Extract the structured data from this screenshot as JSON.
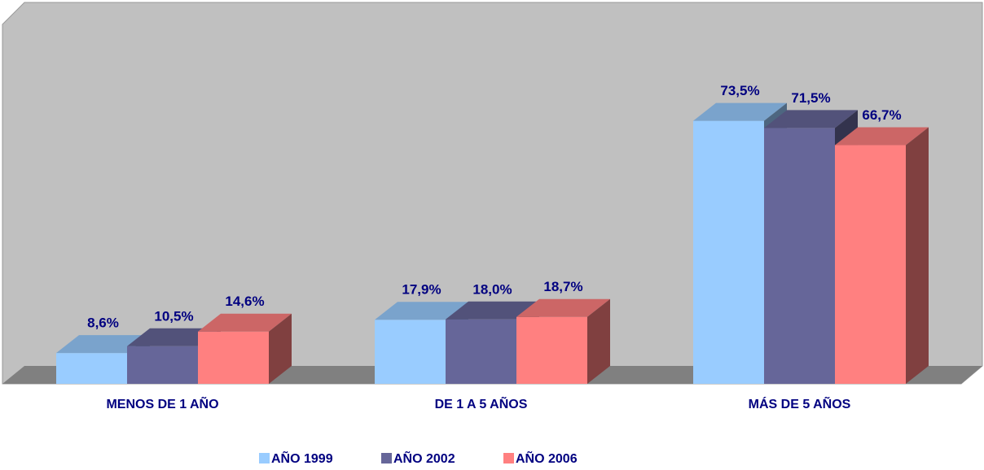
{
  "chart_data": {
    "type": "bar3d",
    "categories": [
      "MENOS DE 1 AÑO",
      "DE 1 A 5 AÑOS",
      "MÁS DE 5 AÑOS"
    ],
    "series": [
      {
        "name": "AÑO 1999",
        "color": "#99ccff",
        "values": [
          8.6,
          17.9,
          73.5
        ],
        "value_labels": [
          "8,6%",
          "17,9%",
          "73,5%"
        ]
      },
      {
        "name": "AÑO 2002",
        "color": "#666699",
        "values": [
          10.5,
          18.0,
          71.5
        ],
        "value_labels": [
          "10,5%",
          "18,0%",
          "71,5%"
        ]
      },
      {
        "name": "AÑO 2006",
        "color": "#ff8080",
        "values": [
          14.6,
          18.7,
          66.7
        ],
        "value_labels": [
          "14,6%",
          "18,7%",
          "66,7%"
        ]
      }
    ],
    "legend": "bottom"
  }
}
